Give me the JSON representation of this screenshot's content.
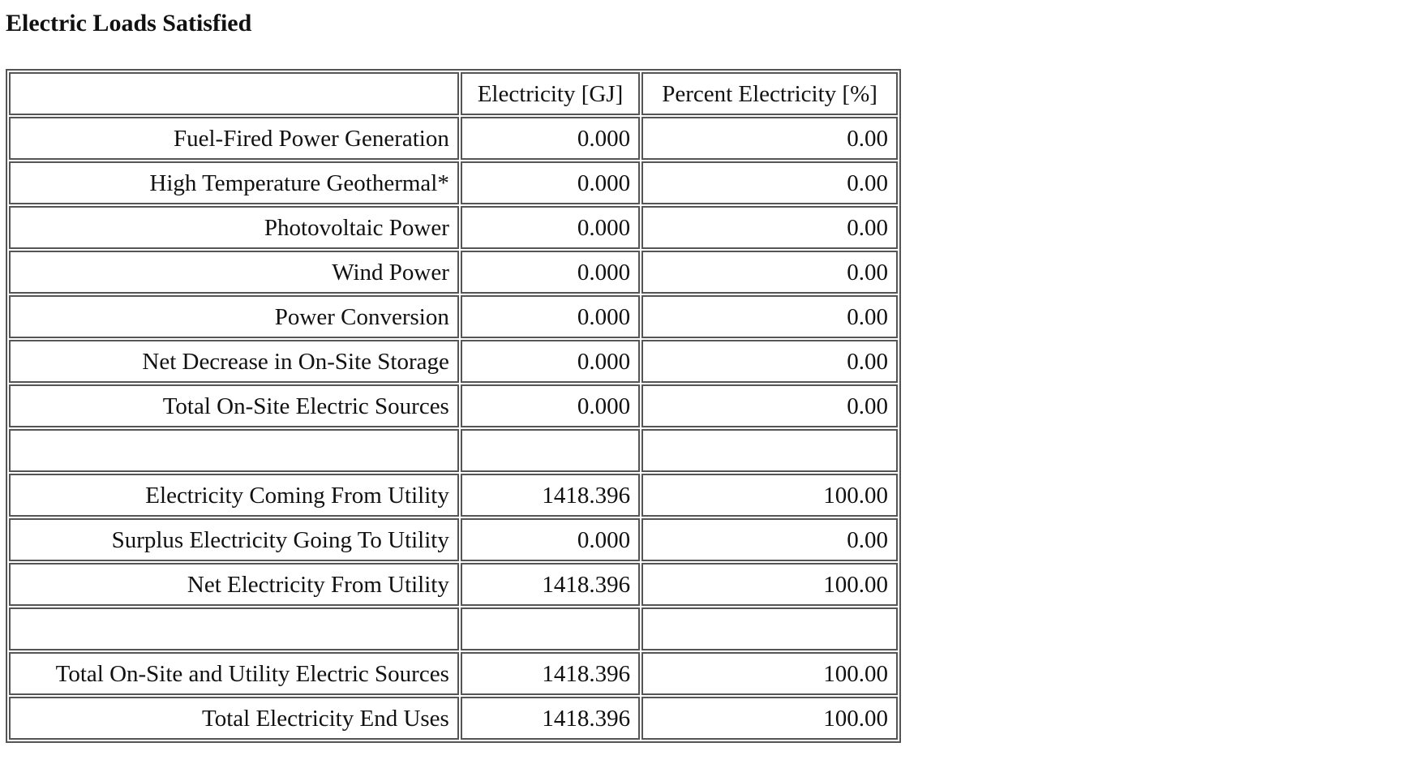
{
  "report": {
    "title": "Electric Loads Satisfied",
    "columns": [
      "",
      "Electricity [GJ]",
      "Percent Electricity [%]"
    ],
    "rows": [
      {
        "label": "Fuel-Fired Power Generation",
        "electricity": "0.000",
        "percent": "0.00"
      },
      {
        "label": "High Temperature Geothermal*",
        "electricity": "0.000",
        "percent": "0.00"
      },
      {
        "label": "Photovoltaic Power",
        "electricity": "0.000",
        "percent": "0.00"
      },
      {
        "label": "Wind Power",
        "electricity": "0.000",
        "percent": "0.00"
      },
      {
        "label": "Power Conversion",
        "electricity": "0.000",
        "percent": "0.00"
      },
      {
        "label": "Net Decrease in On-Site Storage",
        "electricity": "0.000",
        "percent": "0.00"
      },
      {
        "label": "Total On-Site Electric Sources",
        "electricity": "0.000",
        "percent": "0.00"
      },
      {
        "label": "",
        "electricity": "",
        "percent": ""
      },
      {
        "label": "Electricity Coming From Utility",
        "electricity": "1418.396",
        "percent": "100.00"
      },
      {
        "label": "Surplus Electricity Going To Utility",
        "electricity": "0.000",
        "percent": "0.00"
      },
      {
        "label": "Net Electricity From Utility",
        "electricity": "1418.396",
        "percent": "100.00"
      },
      {
        "label": "",
        "electricity": "",
        "percent": ""
      },
      {
        "label": "Total On-Site and Utility Electric Sources",
        "electricity": "1418.396",
        "percent": "100.00"
      },
      {
        "label": "Total Electricity End Uses",
        "electricity": "1418.396",
        "percent": "100.00"
      }
    ]
  }
}
